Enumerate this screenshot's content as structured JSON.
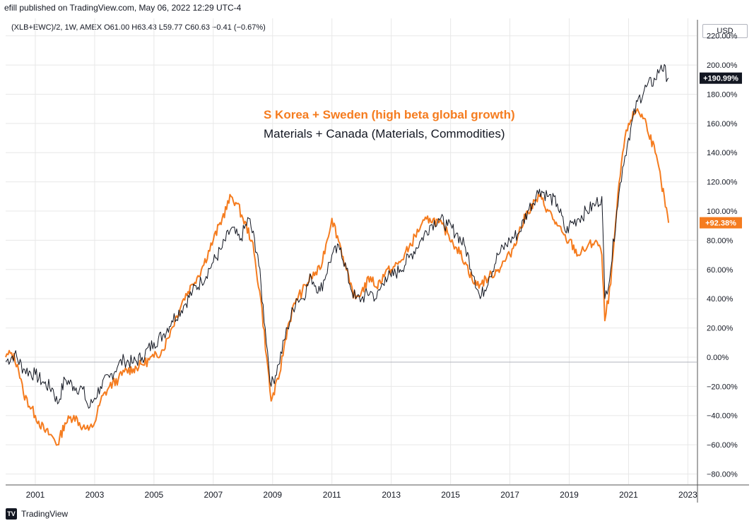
{
  "header": {
    "published": "efill published on TradingView.com, May 06, 2022 12:29 UTC-4"
  },
  "symbol_line": "(XLB+EWC)/2, 1W, AMEX  O61.00  H63.43  L59.77  C60.63  −0.41 (−0.67%)",
  "currency": "USD",
  "logo_text": "TradingView",
  "colors": {
    "orange": "#f57c1f",
    "black": "#131722",
    "grid": "#e8e8e8"
  },
  "chart_data": {
    "type": "line",
    "title": "",
    "annotations": [
      {
        "text": "S Korea + Sweden (high beta global growth)",
        "color": "#f57c1f"
      },
      {
        "text": "Materials + Canada (Materials, Commodities)",
        "color": "#131722"
      }
    ],
    "xlabel": "",
    "ylabel": "",
    "xlim": [
      2000.0,
      2023.3
    ],
    "ylim": [
      -87,
      230
    ],
    "x_ticks": [
      2001,
      2003,
      2005,
      2007,
      2009,
      2011,
      2013,
      2015,
      2017,
      2019,
      2021,
      2023
    ],
    "y_ticks": [
      -80,
      -60,
      -40,
      -20,
      0,
      20,
      40,
      60,
      80,
      100,
      120,
      140,
      160,
      180,
      200,
      220
    ],
    "y_tick_labels": [
      "−80.00%",
      "−60.00%",
      "−40.00%",
      "−20.00%",
      "0.00%",
      "20.00%",
      "40.00%",
      "60.00%",
      "80.00%",
      "100.00%",
      "120.00%",
      "140.00%",
      "160.00%",
      "180.00%",
      "200.00%",
      "220.00%"
    ],
    "series": [
      {
        "name": "Materials + Canada (XLB+EWC)/2",
        "color": "#131722",
        "last_label": "+190.99%",
        "x": [
          2000.0,
          2000.3,
          2000.6,
          2001.0,
          2001.3,
          2001.6,
          2001.75,
          2002.0,
          2002.3,
          2002.6,
          2002.8,
          2003.0,
          2003.2,
          2003.5,
          2003.8,
          2004.0,
          2004.3,
          2004.6,
          2005.0,
          2005.3,
          2005.6,
          2006.0,
          2006.3,
          2006.6,
          2007.0,
          2007.3,
          2007.6,
          2007.9,
          2008.2,
          2008.5,
          2008.75,
          2008.95,
          2009.2,
          2009.5,
          2009.8,
          2010.0,
          2010.3,
          2010.6,
          2011.0,
          2011.3,
          2011.6,
          2011.8,
          2012.0,
          2012.3,
          2012.5,
          2012.8,
          2013.0,
          2013.3,
          2013.6,
          2014.0,
          2014.3,
          2014.6,
          2014.9,
          2015.2,
          2015.5,
          2015.8,
          2016.0,
          2016.3,
          2016.6,
          2017.0,
          2017.3,
          2017.6,
          2018.0,
          2018.3,
          2018.6,
          2018.9,
          2019.0,
          2019.3,
          2019.6,
          2019.9,
          2020.1,
          2020.2,
          2020.4,
          2020.6,
          2020.8,
          2021.0,
          2021.3,
          2021.6,
          2021.9,
          2022.1,
          2022.35
        ],
        "y": [
          -3,
          2,
          -8,
          -12,
          -18,
          -22,
          -32,
          -15,
          -20,
          -22,
          -35,
          -28,
          -20,
          -14,
          -5,
          -2,
          -4,
          0,
          10,
          15,
          25,
          35,
          45,
          52,
          65,
          75,
          88,
          80,
          95,
          70,
          20,
          -20,
          -5,
          20,
          40,
          40,
          55,
          45,
          70,
          75,
          50,
          40,
          40,
          45,
          40,
          55,
          55,
          60,
          68,
          80,
          90,
          95,
          90,
          85,
          75,
          55,
          40,
          55,
          70,
          80,
          85,
          100,
          115,
          110,
          105,
          85,
          90,
          95,
          100,
          105,
          110,
          40,
          60,
          100,
          130,
          150,
          175,
          185,
          190,
          200,
          191
        ]
      },
      {
        "name": "S Korea + Sweden",
        "color": "#f57c1f",
        "last_label": "+92.38%",
        "x": [
          2000.0,
          2000.2,
          2000.4,
          2000.6,
          2001.0,
          2001.3,
          2001.6,
          2001.75,
          2002.0,
          2002.3,
          2002.6,
          2002.8,
          2003.0,
          2003.2,
          2003.5,
          2003.8,
          2004.0,
          2004.3,
          2004.6,
          2005.0,
          2005.3,
          2005.6,
          2006.0,
          2006.3,
          2006.6,
          2007.0,
          2007.3,
          2007.6,
          2007.8,
          2008.0,
          2008.3,
          2008.6,
          2008.8,
          2008.95,
          2009.2,
          2009.5,
          2009.8,
          2010.0,
          2010.3,
          2010.6,
          2011.0,
          2011.3,
          2011.6,
          2011.8,
          2012.0,
          2012.3,
          2012.5,
          2012.8,
          2013.0,
          2013.3,
          2013.6,
          2014.0,
          2014.3,
          2014.6,
          2014.9,
          2015.2,
          2015.5,
          2015.8,
          2016.0,
          2016.3,
          2016.6,
          2017.0,
          2017.3,
          2017.6,
          2018.0,
          2018.3,
          2018.6,
          2018.9,
          2019.0,
          2019.3,
          2019.6,
          2019.9,
          2020.1,
          2020.2,
          2020.4,
          2020.6,
          2020.8,
          2021.0,
          2021.3,
          2021.6,
          2021.9,
          2022.1,
          2022.35
        ],
        "y": [
          0,
          3,
          -5,
          -25,
          -40,
          -50,
          -55,
          -60,
          -45,
          -40,
          -48,
          -50,
          -45,
          -30,
          -20,
          -15,
          -10,
          -8,
          -5,
          0,
          5,
          20,
          40,
          50,
          60,
          80,
          95,
          110,
          105,
          95,
          80,
          40,
          0,
          -30,
          -15,
          20,
          40,
          45,
          55,
          60,
          95,
          75,
          50,
          40,
          45,
          55,
          48,
          58,
          60,
          65,
          75,
          90,
          95,
          92,
          85,
          75,
          65,
          50,
          50,
          55,
          60,
          70,
          85,
          100,
          110,
          100,
          90,
          80,
          80,
          70,
          75,
          80,
          70,
          25,
          50,
          100,
          140,
          160,
          170,
          160,
          140,
          120,
          92
        ]
      }
    ]
  }
}
